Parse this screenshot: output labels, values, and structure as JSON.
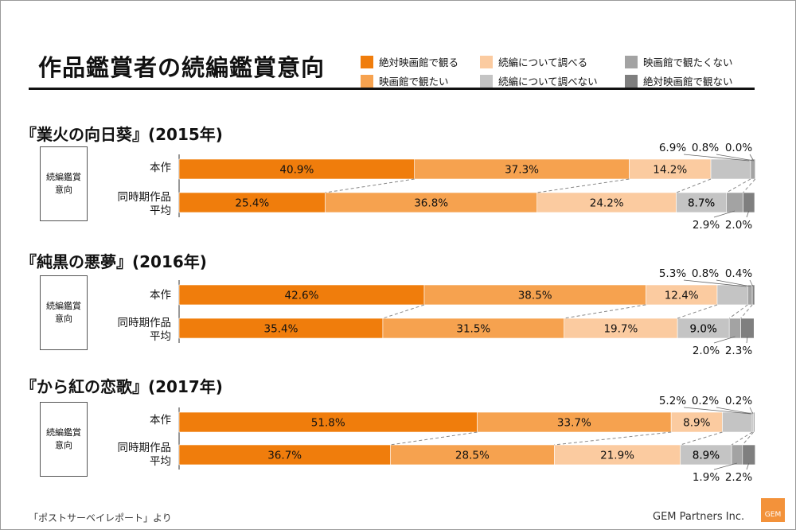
{
  "title": "作品鑑賞者の続編鑑賞意向",
  "legend": [
    {
      "label": "絶対映画館で観る",
      "color": "#f07d0c"
    },
    {
      "label": "映画館で観たい",
      "color": "#f6a24f"
    },
    {
      "label": "続編について調べる",
      "color": "#fbcba0"
    },
    {
      "label": "続編について調べない",
      "color": "#c4c4c4"
    },
    {
      "label": "映画館で観たくない",
      "color": "#a3a3a3"
    },
    {
      "label": "絶対映画館で観ない",
      "color": "#7f7f7f"
    }
  ],
  "tag_label": "続編鑑賞\n意向",
  "row_labels": [
    "本作",
    "同時期作品\n平均"
  ],
  "footer": {
    "source": "「ポストサーベイレポート」より",
    "brand": "GEM Partners Inc.",
    "logo_text": "GEM"
  },
  "chart_data": [
    {
      "type": "bar",
      "title": "『業火の向日葵』(2015年)",
      "categories": [
        "本作",
        "同時期作品平均"
      ],
      "series": [
        {
          "name": "絶対映画館で観る",
          "values": [
            40.9,
            25.4
          ]
        },
        {
          "name": "映画館で観たい",
          "values": [
            37.3,
            36.8
          ]
        },
        {
          "name": "続編について調べる",
          "values": [
            14.2,
            24.2
          ]
        },
        {
          "name": "続編について調べない",
          "values": [
            6.9,
            8.7
          ]
        },
        {
          "name": "映画館で観たくない",
          "values": [
            0.8,
            2.9
          ]
        },
        {
          "name": "絶対映画館で観ない",
          "values": [
            0.0,
            2.0
          ]
        }
      ]
    },
    {
      "type": "bar",
      "title": "『純黒の悪夢』(2016年)",
      "categories": [
        "本作",
        "同時期作品平均"
      ],
      "series": [
        {
          "name": "絶対映画館で観る",
          "values": [
            42.6,
            35.4
          ]
        },
        {
          "name": "映画館で観たい",
          "values": [
            38.5,
            31.5
          ]
        },
        {
          "name": "続編について調べる",
          "values": [
            12.4,
            19.7
          ]
        },
        {
          "name": "続編について調べない",
          "values": [
            5.3,
            9.0
          ]
        },
        {
          "name": "映画館で観たくない",
          "values": [
            0.8,
            2.0
          ]
        },
        {
          "name": "絶対映画館で観ない",
          "values": [
            0.4,
            2.3
          ]
        }
      ]
    },
    {
      "type": "bar",
      "title": "『から紅の恋歌』(2017年)",
      "categories": [
        "本作",
        "同時期作品平均"
      ],
      "series": [
        {
          "name": "絶対映画館で観る",
          "values": [
            51.8,
            36.7
          ]
        },
        {
          "name": "映画館で観たい",
          "values": [
            33.7,
            28.5
          ]
        },
        {
          "name": "続編について調べる",
          "values": [
            8.9,
            21.9
          ]
        },
        {
          "name": "続編について調べない",
          "values": [
            5.2,
            8.9
          ]
        },
        {
          "name": "映画館で観たくない",
          "values": [
            0.2,
            1.9
          ]
        },
        {
          "name": "絶対映画館で観ない",
          "values": [
            0.2,
            2.2
          ]
        }
      ]
    }
  ]
}
